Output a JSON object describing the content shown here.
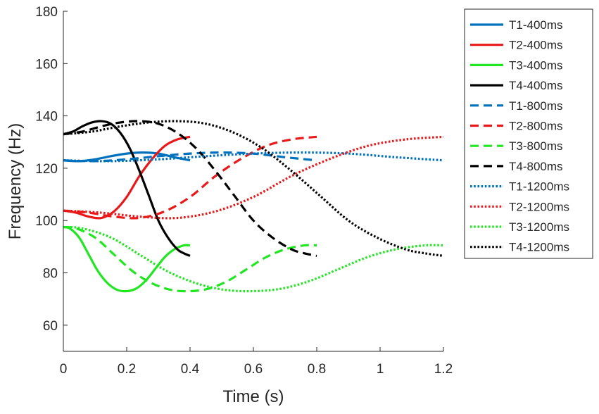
{
  "chart_data": {
    "type": "line",
    "title": "",
    "xlabel": "Time (s)",
    "ylabel": "Frequency (Hz)",
    "xlim": [
      0,
      1.2
    ],
    "ylim": [
      50,
      180
    ],
    "xticks": [
      0,
      0.2,
      0.4,
      0.6,
      0.8,
      1,
      1.2
    ],
    "xtick_labels": [
      "0",
      "0.2",
      "0.4",
      "0.6",
      "0.8",
      "1",
      "1.2"
    ],
    "yticks": [
      60,
      80,
      100,
      120,
      140,
      160,
      180
    ],
    "ytick_labels": [
      "60",
      "80",
      "100",
      "120",
      "140",
      "160",
      "180"
    ],
    "grid": false,
    "legend_position": "outside-right",
    "series": [
      {
        "name": "T1-400ms",
        "color": "#0072BD",
        "style": "solid",
        "x": [
          0,
          0.05,
          0.1,
          0.15,
          0.2,
          0.25,
          0.3,
          0.35,
          0.4
        ],
        "y": [
          123,
          122.7,
          123.4,
          124.6,
          125.6,
          126,
          125.6,
          124.2,
          123
        ]
      },
      {
        "name": "T2-400ms",
        "color": "#E8191A",
        "style": "solid",
        "x": [
          0,
          0.04,
          0.08,
          0.12,
          0.16,
          0.2,
          0.24,
          0.28,
          0.32,
          0.36,
          0.4
        ],
        "y": [
          103.8,
          103,
          101.5,
          101,
          103.5,
          109,
          117,
          123.5,
          128.5,
          131,
          132
        ]
      },
      {
        "name": "T3-400ms",
        "color": "#22E622",
        "style": "solid",
        "x": [
          0,
          0.02,
          0.05,
          0.08,
          0.11,
          0.14,
          0.17,
          0.2,
          0.23,
          0.26,
          0.29,
          0.32,
          0.35,
          0.38,
          0.4
        ],
        "y": [
          97.5,
          97,
          93.5,
          87,
          80.5,
          76,
          73.5,
          73,
          74,
          77,
          81.5,
          86,
          89,
          90.5,
          90.5
        ]
      },
      {
        "name": "T4-400ms",
        "color": "#000000",
        "style": "solid",
        "x": [
          0,
          0.03,
          0.06,
          0.09,
          0.12,
          0.15,
          0.18,
          0.21,
          0.24,
          0.27,
          0.3,
          0.33,
          0.36,
          0.38,
          0.4
        ],
        "y": [
          133,
          134,
          136,
          137.5,
          138,
          137,
          133.5,
          127.5,
          119,
          109.5,
          100,
          93.5,
          89,
          87.5,
          86.5
        ]
      },
      {
        "name": "T1-800ms",
        "color": "#0072BD",
        "style": "dashed",
        "x": [
          0,
          0.1,
          0.2,
          0.3,
          0.4,
          0.5,
          0.6,
          0.7,
          0.8
        ],
        "y": [
          123,
          122.7,
          123.4,
          124.6,
          125.6,
          126,
          125.6,
          124.2,
          123
        ]
      },
      {
        "name": "T2-800ms",
        "color": "#E8191A",
        "style": "dashed",
        "x": [
          0,
          0.08,
          0.16,
          0.24,
          0.32,
          0.4,
          0.48,
          0.56,
          0.64,
          0.72,
          0.8
        ],
        "y": [
          103.8,
          103,
          101.5,
          101,
          103.5,
          109,
          117,
          123.5,
          128.5,
          131,
          132
        ]
      },
      {
        "name": "T3-800ms",
        "color": "#22E622",
        "style": "dashed",
        "x": [
          0,
          0.04,
          0.1,
          0.16,
          0.22,
          0.28,
          0.34,
          0.4,
          0.46,
          0.52,
          0.58,
          0.64,
          0.7,
          0.76,
          0.8
        ],
        "y": [
          97.5,
          97,
          93.5,
          87,
          80.5,
          76,
          73.5,
          73,
          74,
          77,
          81.5,
          86,
          89,
          90.5,
          90.5
        ]
      },
      {
        "name": "T4-800ms",
        "color": "#000000",
        "style": "dashed",
        "x": [
          0,
          0.06,
          0.12,
          0.18,
          0.24,
          0.3,
          0.36,
          0.42,
          0.48,
          0.54,
          0.6,
          0.66,
          0.72,
          0.76,
          0.8
        ],
        "y": [
          133,
          134,
          136,
          137.5,
          138,
          137,
          133.5,
          127.5,
          119,
          109.5,
          100,
          93.5,
          89,
          87.5,
          86.5
        ]
      },
      {
        "name": "T1-1200ms",
        "color": "#0072BD",
        "style": "dotted",
        "x": [
          0,
          0.15,
          0.3,
          0.45,
          0.6,
          0.75,
          0.9,
          1.05,
          1.2
        ],
        "y": [
          123,
          122.7,
          123.4,
          124.6,
          125.6,
          126,
          125.6,
          124.2,
          123
        ]
      },
      {
        "name": "T2-1200ms",
        "color": "#E8191A",
        "style": "dotted",
        "x": [
          0,
          0.12,
          0.24,
          0.36,
          0.48,
          0.6,
          0.72,
          0.84,
          0.96,
          1.08,
          1.2
        ],
        "y": [
          103.8,
          103,
          101.5,
          101,
          103.5,
          109,
          117,
          123.5,
          128.5,
          131,
          132
        ]
      },
      {
        "name": "T3-1200ms",
        "color": "#22E622",
        "style": "dotted",
        "x": [
          0,
          0.06,
          0.15,
          0.24,
          0.33,
          0.42,
          0.51,
          0.6,
          0.69,
          0.78,
          0.87,
          0.96,
          1.05,
          1.14,
          1.2
        ],
        "y": [
          97.5,
          97,
          93.5,
          87,
          80.5,
          76,
          73.5,
          73,
          74,
          77,
          81.5,
          86,
          89,
          90.5,
          90.5
        ]
      },
      {
        "name": "T4-1200ms",
        "color": "#000000",
        "style": "dotted",
        "x": [
          0,
          0.09,
          0.18,
          0.27,
          0.36,
          0.45,
          0.54,
          0.63,
          0.72,
          0.81,
          0.9,
          0.99,
          1.08,
          1.14,
          1.2
        ],
        "y": [
          133,
          134,
          136,
          137.5,
          138,
          137,
          133.5,
          127.5,
          119,
          109.5,
          100,
          93.5,
          89,
          87.5,
          86.5
        ]
      }
    ]
  }
}
